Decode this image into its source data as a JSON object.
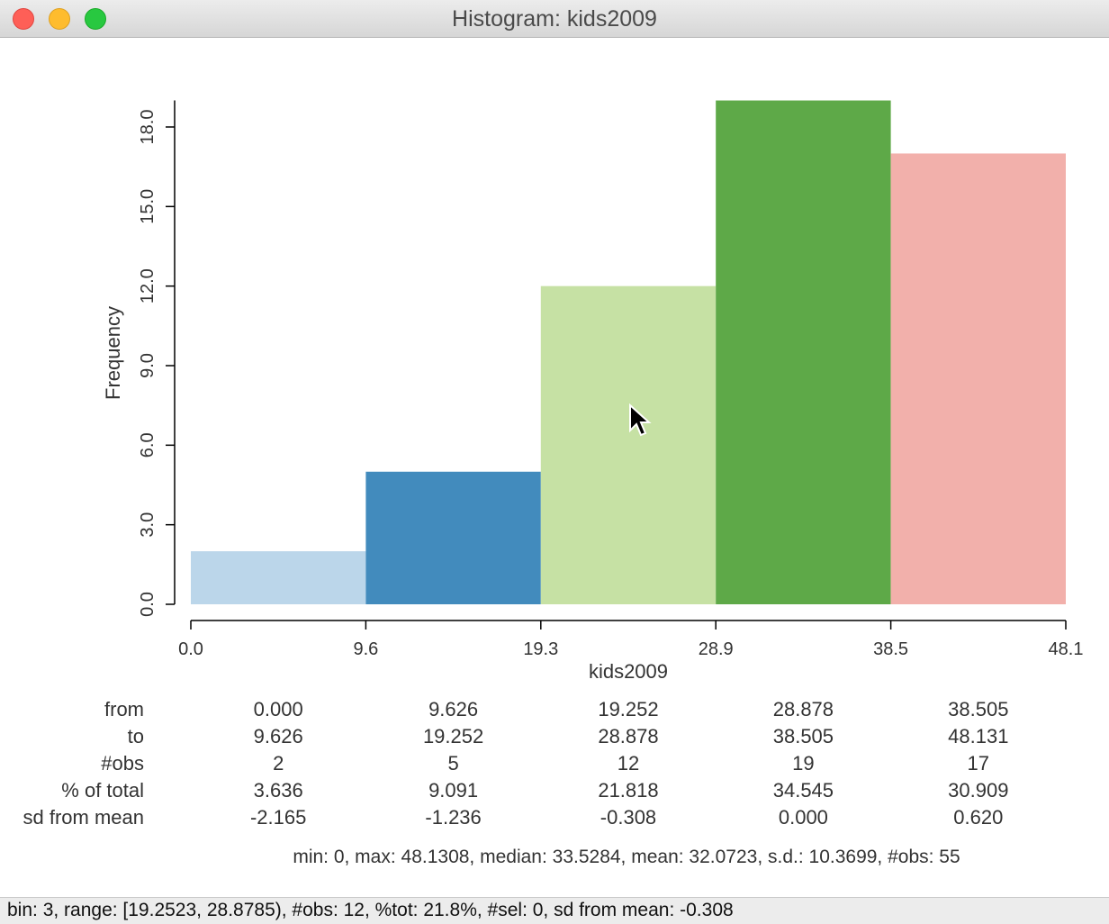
{
  "window": {
    "title": "Histogram: kids2009"
  },
  "chart_data": {
    "type": "bar",
    "xlabel": "kids2009",
    "ylabel": "Frequency",
    "x_ticks": [
      "0.0",
      "9.6",
      "19.3",
      "28.9",
      "38.5",
      "48.1"
    ],
    "x_tick_values": [
      0.0,
      9.626,
      19.252,
      28.878,
      38.505,
      48.131
    ],
    "y_ticks": [
      "0.0",
      "3.0",
      "6.0",
      "9.0",
      "12.0",
      "15.0",
      "18.0"
    ],
    "y_tick_values": [
      0,
      3,
      6,
      9,
      12,
      15,
      18
    ],
    "ylim": [
      0,
      19
    ],
    "xlim": [
      0,
      48.131
    ],
    "bins": [
      {
        "from": 0.0,
        "to": 9.626,
        "count": 2,
        "color": "#bbd6ea"
      },
      {
        "from": 9.626,
        "to": 19.252,
        "count": 5,
        "color": "#428bbd"
      },
      {
        "from": 19.252,
        "to": 28.878,
        "count": 12,
        "color": "#c6e1a4"
      },
      {
        "from": 28.878,
        "to": 38.505,
        "count": 19,
        "color": "#5ea948"
      },
      {
        "from": 38.505,
        "to": 48.131,
        "count": 17,
        "color": "#f2b0ab"
      }
    ]
  },
  "table": {
    "row_labels": [
      "from",
      "to",
      "#obs",
      "% of total",
      "sd from mean"
    ],
    "columns": [
      [
        "0.000",
        "9.626",
        "2",
        "3.636",
        "-2.165"
      ],
      [
        "9.626",
        "19.252",
        "5",
        "9.091",
        "-1.236"
      ],
      [
        "19.252",
        "28.878",
        "12",
        "21.818",
        "-0.308"
      ],
      [
        "28.878",
        "38.505",
        "19",
        "34.545",
        "0.000"
      ],
      [
        "38.505",
        "48.131",
        "17",
        "30.909",
        "0.620"
      ]
    ]
  },
  "summary": "min: 0, max: 48.1308, median: 33.5284, mean: 32.0723, s.d.: 10.3699, #obs: 55",
  "status": "bin: 3, range: [19.2523, 28.8785), #obs: 12, %tot: 21.8%, #sel: 0, sd from mean: -0.308"
}
